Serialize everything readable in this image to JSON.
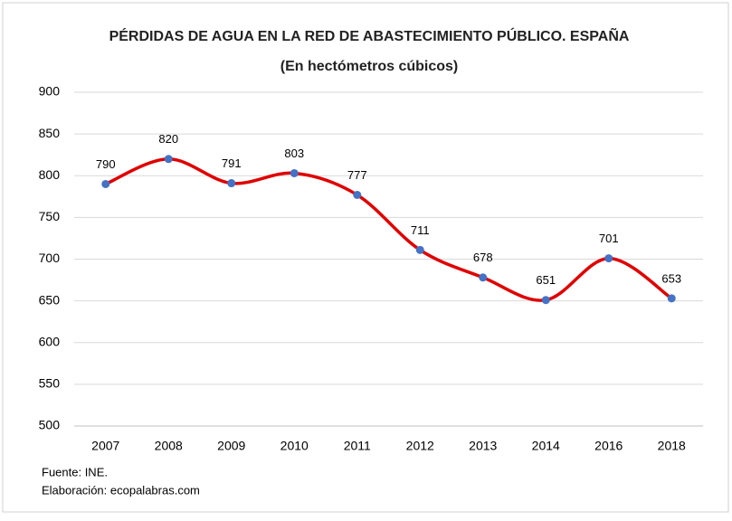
{
  "chart_data": {
    "type": "line",
    "title": "PÉRDIDAS DE AGUA EN LA RED DE ABASTECIMIENTO PÚBLICO. ESPAÑA",
    "subtitle": "(En hectómetros cúbicos)",
    "categories": [
      "2007",
      "2008",
      "2009",
      "2010",
      "2011",
      "2012",
      "2013",
      "2014",
      "2016",
      "2018"
    ],
    "values": [
      790,
      820,
      791,
      803,
      777,
      711,
      678,
      651,
      701,
      653
    ],
    "color": "#e00000",
    "marker_color": "#4472c4",
    "smooth": true,
    "ylim": [
      500,
      900
    ],
    "yticks": [
      500,
      550,
      600,
      650,
      700,
      750,
      800,
      850,
      900
    ],
    "grid": true,
    "notes": [
      "Fuente: INE.",
      "Elaboración: ecopalabras.com"
    ]
  }
}
